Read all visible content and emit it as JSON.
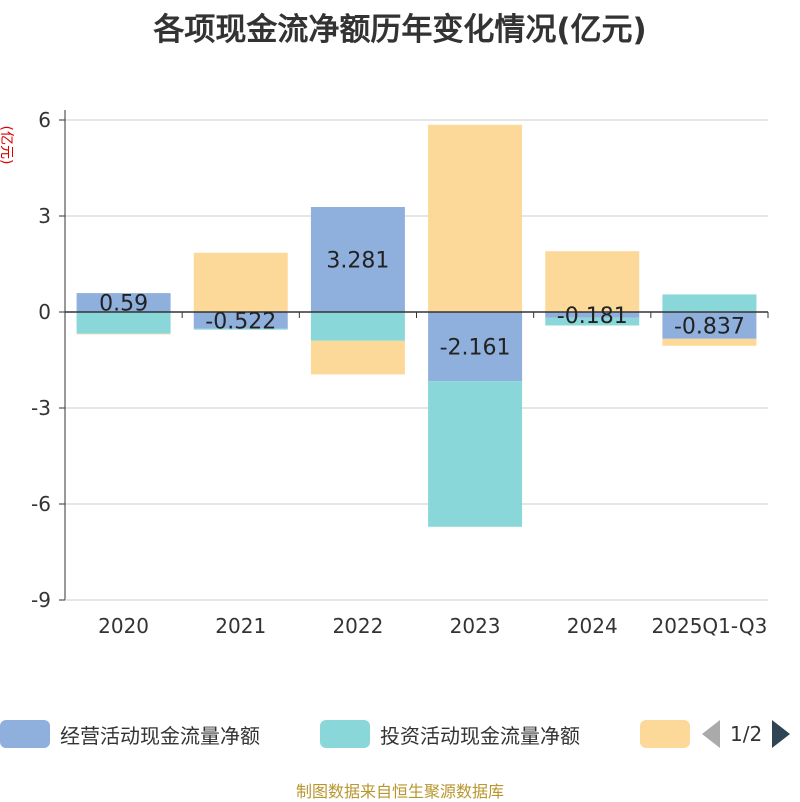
{
  "chart_data": {
    "type": "bar",
    "title": "各项现金流净额历年变化情况(亿元)",
    "ylabel": "(亿元)",
    "xlabel": "",
    "categories": [
      "2020",
      "2021",
      "2022",
      "2023",
      "2024",
      "2025Q1-Q3"
    ],
    "ylim": [
      -9,
      6
    ],
    "yticks": [
      6,
      3,
      0,
      -3,
      -6,
      -9
    ],
    "grid": true,
    "series": [
      {
        "name": "经营活动现金流量净额",
        "color": "#8fb0dc",
        "values": [
          0.59,
          -0.522,
          3.281,
          -2.161,
          -0.181,
          -0.837
        ],
        "show_labels": true
      },
      {
        "name": "投资活动现金流量净额",
        "color": "#89d7d9",
        "values": [
          -0.68,
          -0.03,
          -0.9,
          -4.55,
          -0.24,
          0.55
        ],
        "show_labels": false
      },
      {
        "name": "",
        "color": "#fdd999",
        "values": [
          -0.02,
          1.85,
          -1.05,
          5.85,
          1.9,
          -0.22
        ],
        "show_labels": false
      }
    ],
    "labels": [
      "0.59",
      "-0.522",
      "3.281",
      "-2.161",
      "-0.181",
      "-0.837"
    ]
  },
  "legend": {
    "items": [
      {
        "name": "经营活动现金流量净额",
        "color": "#8fb0dc"
      },
      {
        "name": "投资活动现金流量净额",
        "color": "#89d7d9"
      },
      {
        "name": "",
        "color": "#fdd999"
      }
    ],
    "page": "1/2"
  },
  "source": "制图数据来自恒生聚源数据库"
}
